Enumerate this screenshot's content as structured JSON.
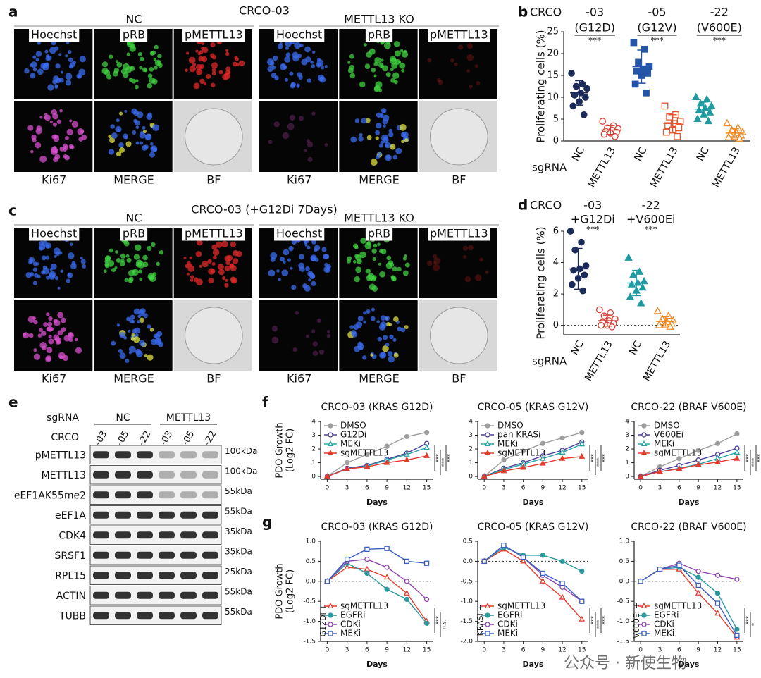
{
  "figure": {
    "a": {
      "label": "a",
      "title": "CRCO-03",
      "groups": [
        {
          "name": "NC",
          "channels": [
            "Hoechst",
            "pRB",
            "pMETTL13",
            "Ki67",
            "MERGE",
            "BF"
          ]
        },
        {
          "name": "METTL13 KO",
          "channels": [
            "Hoechst",
            "pRB",
            "pMETTL13",
            "Ki67",
            "MERGE",
            "BF"
          ]
        }
      ]
    },
    "c": {
      "label": "c",
      "title": "CRCO-03 (+G12Di 7Days)",
      "groups": [
        {
          "name": "NC",
          "channels": [
            "Hoechst",
            "pRB",
            "pMETTL13",
            "Ki67",
            "MERGE",
            "BF"
          ]
        },
        {
          "name": "METTL13 KO",
          "channels": [
            "Hoechst",
            "pRB",
            "pMETTL13",
            "Ki67",
            "MERGE",
            "BF"
          ]
        }
      ]
    },
    "e": {
      "label": "e",
      "header_1": "sgRNA",
      "groups": [
        "NC",
        "METTL13"
      ],
      "header_2": "CRCO",
      "lanes": [
        "-03",
        "-05",
        "-22",
        "-03",
        "-05",
        "-22"
      ],
      "blots": [
        {
          "name": "pMETTL13",
          "size": "100kDa"
        },
        {
          "name": "METTL13",
          "size": "100kDa"
        },
        {
          "name": "eEF1AK55me2",
          "size": "55kDa"
        },
        {
          "name": "eEF1A",
          "size": "55kDa"
        },
        {
          "name": "CDK4",
          "size": "35kDa"
        },
        {
          "name": "SRSF1",
          "size": "35kDa"
        },
        {
          "name": "RPL15",
          "size": "25kDa"
        },
        {
          "name": "ACTIN",
          "size": "55kDa"
        },
        {
          "name": "TUBB",
          "size": "55kDa"
        }
      ]
    },
    "watermark": "公众号 · 新使生物"
  },
  "chart_data": [
    {
      "type": "dot",
      "panel_label": "b",
      "group_label": "CRCO",
      "y_label": "Proliferating cells (%)",
      "x_group_label": "sgRNA",
      "underline": true,
      "ylim": [
        0,
        25
      ],
      "yticks": [
        0,
        5,
        10,
        15,
        20,
        25
      ],
      "clusters": [
        {
          "name": "-03",
          "subname": "(G12D)",
          "significance": "***"
        },
        {
          "name": "-05",
          "subname": "(G12V)",
          "significance": "***"
        },
        {
          "name": "-22",
          "subname": "(V600E)",
          "significance": "***"
        }
      ],
      "categories": [
        "NC",
        "METTL13",
        "NC",
        "METTL13",
        "NC",
        "METTL13"
      ],
      "groups": [
        {
          "color": "#1c2b5a",
          "marker": "circle",
          "filled": true,
          "points": [
            15.5,
            13,
            12.5,
            12,
            11,
            10.5,
            10,
            9,
            8,
            6
          ],
          "mean": 11,
          "sd": 2.8
        },
        {
          "color": "#d8403a",
          "marker": "circle",
          "filled": false,
          "points": [
            4.5,
            3.5,
            3,
            2.8,
            2.5,
            2.2,
            2,
            1.8,
            1.5,
            1
          ],
          "mean": 2.5,
          "sd": 1
        },
        {
          "color": "#2455a8",
          "marker": "square",
          "filled": true,
          "points": [
            22.5,
            21,
            18,
            17,
            16.5,
            16,
            15.5,
            15,
            13,
            11
          ],
          "mean": 17,
          "sd": 3.8
        },
        {
          "color": "#e4552d",
          "marker": "square",
          "filled": false,
          "points": [
            8,
            6,
            5.5,
            4.5,
            4,
            3.5,
            3,
            2.5,
            2,
            1
          ],
          "mean": 4,
          "sd": 2
        },
        {
          "color": "#1f9aa0",
          "marker": "triangle",
          "filled": true,
          "points": [
            10,
            9.5,
            8.5,
            8,
            7.5,
            7,
            6.5,
            6,
            5,
            4.5
          ],
          "mean": 7.3,
          "sd": 1.6
        },
        {
          "color": "#f08a24",
          "marker": "triangle",
          "filled": false,
          "points": [
            4,
            3,
            2.5,
            2,
            1.8,
            1.5,
            1.2,
            1,
            0.8,
            0.5
          ],
          "mean": 1.8,
          "sd": 1
        }
      ]
    },
    {
      "type": "dot",
      "panel_label": "d",
      "group_label": "CRCO",
      "y_label": "Proliferating cells (%)",
      "x_group_label": "sgRNA",
      "underline": false,
      "ylim": [
        -0.6,
        6
      ],
      "yticks": [
        0,
        2,
        4,
        6
      ],
      "refline": 0,
      "clusters": [
        {
          "name": "-03",
          "subname": "+G12Di",
          "significance": "***"
        },
        {
          "name": "-22",
          "subname": "+V600Ei",
          "significance": "***"
        }
      ],
      "categories": [
        "NC",
        "METTL13",
        "NC",
        "METTL13"
      ],
      "groups": [
        {
          "color": "#1c2b5a",
          "marker": "circle",
          "filled": true,
          "points": [
            6,
            5.3,
            4.8,
            3.8,
            3.6,
            3.5,
            3.2,
            3,
            2.6,
            2.2
          ],
          "mean": 3.6,
          "sd": 1.3
        },
        {
          "color": "#d8403a",
          "marker": "circle",
          "filled": false,
          "points": [
            1,
            0.8,
            0.6,
            0.4,
            0.3,
            0.2,
            0.1,
            0,
            0,
            -0.1
          ],
          "mean": 0.3,
          "sd": 0.35
        },
        {
          "color": "#1f9aa0",
          "marker": "triangle",
          "filled": true,
          "points": [
            4.3,
            3.4,
            3.2,
            2.8,
            2.7,
            2.6,
            2.4,
            2.2,
            1.8,
            1.4
          ],
          "mean": 2.7,
          "sd": 0.8
        },
        {
          "color": "#f08a24",
          "marker": "triangle",
          "filled": false,
          "points": [
            0.9,
            0.6,
            0.4,
            0.3,
            0.2,
            0.2,
            0.1,
            0,
            0,
            -0.1
          ],
          "mean": 0.25,
          "sd": 0.3
        }
      ]
    },
    {
      "type": "line",
      "panel_label": "f",
      "title": "CRCO-03 (KRAS G12D)",
      "y_label": [
        "PDO Growth",
        "(Log2 FC)"
      ],
      "x_label": "Days",
      "x": [
        0,
        3,
        6,
        9,
        12,
        15
      ],
      "xlim": [
        -1,
        16
      ],
      "xticks": [
        0,
        3,
        6,
        9,
        12,
        15
      ],
      "ylim": [
        -0.2,
        4
      ],
      "yticks": [
        0,
        1,
        2,
        3,
        4
      ],
      "legend": "upper left",
      "significance": [
        "***",
        "***",
        "***"
      ],
      "series": [
        {
          "name": "DMSO",
          "color": "#9e9e9e",
          "marker": "circle",
          "filled": true,
          "values": [
            0,
            1.0,
            1.6,
            2.2,
            2.9,
            3.2
          ]
        },
        {
          "name": "G12Di",
          "color": "#4b3f96",
          "marker": "circle",
          "filled": false,
          "values": [
            0,
            0.6,
            0.8,
            1.25,
            1.7,
            2.4
          ]
        },
        {
          "name": "MEKi",
          "color": "#2aa3a8",
          "marker": "triangle",
          "filled": false,
          "values": [
            0,
            0.55,
            0.75,
            1.2,
            1.6,
            2.1
          ]
        },
        {
          "name": "sgMETTL13",
          "color": "#e33b2e",
          "marker": "triangle",
          "filled": true,
          "values": [
            0,
            0.55,
            0.7,
            1.0,
            1.2,
            1.5
          ]
        }
      ]
    },
    {
      "type": "line",
      "title": "CRCO-05 (KRAS G12V)",
      "x_label": "Days",
      "x": [
        0,
        3,
        6,
        9,
        12,
        15
      ],
      "xlim": [
        -1,
        16
      ],
      "xticks": [
        0,
        3,
        6,
        9,
        12,
        15
      ],
      "ylim": [
        -0.2,
        4
      ],
      "yticks": [
        0,
        1,
        2,
        3,
        4
      ],
      "legend": "upper left",
      "significance": [
        "***",
        "***",
        "***"
      ],
      "series": [
        {
          "name": "DMSO",
          "color": "#9e9e9e",
          "marker": "circle",
          "filled": true,
          "values": [
            0,
            1.2,
            1.85,
            2.4,
            2.8,
            3.2
          ]
        },
        {
          "name": "pan KRASi",
          "color": "#4b3f96",
          "marker": "circle",
          "filled": false,
          "values": [
            0,
            0.6,
            1.0,
            1.5,
            1.9,
            2.5
          ]
        },
        {
          "name": "MEKi",
          "color": "#2aa3a8",
          "marker": "triangle",
          "filled": false,
          "values": [
            0,
            0.5,
            0.9,
            1.3,
            1.75,
            2.35
          ]
        },
        {
          "name": "sgMETTL13",
          "color": "#e33b2e",
          "marker": "triangle",
          "filled": true,
          "values": [
            0,
            0.4,
            0.65,
            0.95,
            1.3,
            1.45
          ]
        }
      ]
    },
    {
      "type": "line",
      "title": "CRCO-22 (BRAF V600E)",
      "x_label": "Days",
      "x": [
        0,
        3,
        6,
        9,
        12,
        15
      ],
      "xlim": [
        -1,
        16
      ],
      "xticks": [
        0,
        3,
        6,
        9,
        12,
        15
      ],
      "ylim": [
        -0.2,
        4
      ],
      "yticks": [
        0,
        1,
        2,
        3,
        4
      ],
      "legend": "upper left",
      "significance": [
        "***",
        "***",
        "***"
      ],
      "series": [
        {
          "name": "DMSO",
          "color": "#9e9e9e",
          "marker": "circle",
          "filled": true,
          "values": [
            0,
            0.7,
            1.3,
            1.9,
            2.4,
            3.1
          ]
        },
        {
          "name": "V600Ei",
          "color": "#4b3f96",
          "marker": "circle",
          "filled": false,
          "values": [
            0,
            0.45,
            0.8,
            1.2,
            1.6,
            2.05
          ]
        },
        {
          "name": "MEKi",
          "color": "#2aa3a8",
          "marker": "triangle",
          "filled": false,
          "values": [
            0,
            0.35,
            0.6,
            0.9,
            1.3,
            1.75
          ]
        },
        {
          "name": "sgMETTL13",
          "color": "#e33b2e",
          "marker": "triangle",
          "filled": true,
          "values": [
            0,
            0.35,
            0.55,
            0.85,
            1.05,
            1.3
          ]
        }
      ]
    },
    {
      "type": "line",
      "panel_label": "g",
      "title": "CRCO-03 (KRAS G12D)",
      "y_label": [
        "PDO Growth",
        "(Log2 FC)"
      ],
      "x_label": "Days",
      "x": [
        0,
        3,
        6,
        9,
        12,
        15
      ],
      "xlim": [
        -1,
        16
      ],
      "xticks": [
        0,
        3,
        6,
        9,
        12,
        15
      ],
      "ylim": [
        -1.5,
        1.0
      ],
      "yticks": [
        -1.5,
        {
          "value": -1.0,
          "label": "-1.0"
        },
        -0.5,
        {
          "value": 0,
          "label": "0.0"
        },
        0.5,
        {
          "value": 1.0,
          "label": "1.0"
        }
      ],
      "refline": 0,
      "legend": "lower left",
      "annotation": "G12Di +",
      "significance": [
        "***",
        "n.s."
      ],
      "series": [
        {
          "name": "sgMETTL13",
          "color": "#e33b2e",
          "marker": "triangle",
          "filled": false,
          "values": [
            0,
            0.35,
            0.3,
            0.1,
            -0.3,
            -1.0
          ]
        },
        {
          "name": "EGFRi",
          "color": "#2a9a9e",
          "marker": "circle",
          "filled": true,
          "values": [
            0,
            0.45,
            0.2,
            -0.2,
            -0.45,
            -1.05
          ]
        },
        {
          "name": "CDKi",
          "color": "#8e44ad",
          "marker": "circle",
          "filled": false,
          "values": [
            0,
            0.5,
            0.55,
            0.35,
            0.0,
            -0.45
          ]
        },
        {
          "name": "MEKi",
          "color": "#3a5bbf",
          "marker": "square",
          "filled": false,
          "values": [
            0,
            0.55,
            0.8,
            0.82,
            0.5,
            0.45
          ]
        }
      ]
    },
    {
      "type": "line",
      "title": "CRCO-05 (KRAS G12V)",
      "x_label": "Days",
      "x": [
        0,
        3,
        6,
        9,
        12,
        15
      ],
      "xlim": [
        -1,
        16
      ],
      "xticks": [
        0,
        3,
        6,
        9,
        12,
        15
      ],
      "ylim": [
        -2.0,
        0.5
      ],
      "yticks": [
        {
          "value": -2.0,
          "label": "-2.0"
        },
        -1.5,
        {
          "value": -1.0,
          "label": "-1.0"
        },
        -0.5,
        {
          "value": 0,
          "label": "0.0"
        },
        0.5
      ],
      "refline": 0,
      "legend": "lower left",
      "annotation": "KRASi +",
      "significance": [
        "***",
        "***",
        "***"
      ],
      "series": [
        {
          "name": "sgMETTL13",
          "color": "#e33b2e",
          "marker": "triangle",
          "filled": false,
          "values": [
            0,
            0.3,
            0,
            -0.5,
            -0.9,
            -1.45
          ]
        },
        {
          "name": "EGFRi",
          "color": "#2a9a9e",
          "marker": "circle",
          "filled": true,
          "values": [
            0,
            0.35,
            0.15,
            0.15,
            0.0,
            -0.25
          ]
        },
        {
          "name": "CDKi",
          "color": "#8e44ad",
          "marker": "circle",
          "filled": false,
          "values": [
            0,
            0.4,
            0.1,
            -0.35,
            -0.65,
            -1.0
          ]
        },
        {
          "name": "MEKi",
          "color": "#3a5bbf",
          "marker": "square",
          "filled": false,
          "values": [
            0,
            0.4,
            0.1,
            -0.3,
            -0.55,
            -1.0
          ]
        }
      ]
    },
    {
      "type": "line",
      "title": "CRCO-22 (BRAF V600E)",
      "x_label": "Days",
      "x": [
        0,
        3,
        6,
        9,
        12,
        15
      ],
      "xlim": [
        -1,
        16
      ],
      "xticks": [
        0,
        3,
        6,
        9,
        12,
        15
      ],
      "ylim": [
        -1.5,
        1.0
      ],
      "yticks": [
        -1.5,
        {
          "value": -1.0,
          "label": "-1.0"
        },
        -0.5,
        {
          "value": 0,
          "label": "0.0"
        },
        0.5,
        {
          "value": 1.0,
          "label": "1.0"
        }
      ],
      "refline": 0,
      "legend": "lower left",
      "annotation": "V600Ei +",
      "significance": [
        "***",
        "*"
      ],
      "series": [
        {
          "name": "sgMETTL13",
          "color": "#e33b2e",
          "marker": "triangle",
          "filled": false,
          "values": [
            0,
            0.3,
            0.3,
            -0.3,
            -0.8,
            -1.4
          ]
        },
        {
          "name": "EGFRi",
          "color": "#2a9a9e",
          "marker": "circle",
          "filled": true,
          "values": [
            0,
            0.3,
            0.35,
            0.1,
            -0.3,
            -1.2
          ]
        },
        {
          "name": "CDKi",
          "color": "#8e44ad",
          "marker": "circle",
          "filled": false,
          "values": [
            0,
            0.3,
            0.45,
            0.25,
            0.15,
            0.05
          ]
        },
        {
          "name": "MEKi",
          "color": "#3a5bbf",
          "marker": "square",
          "filled": false,
          "values": [
            0,
            0.3,
            0.4,
            -0.1,
            -0.55,
            -1.35
          ]
        }
      ]
    }
  ]
}
